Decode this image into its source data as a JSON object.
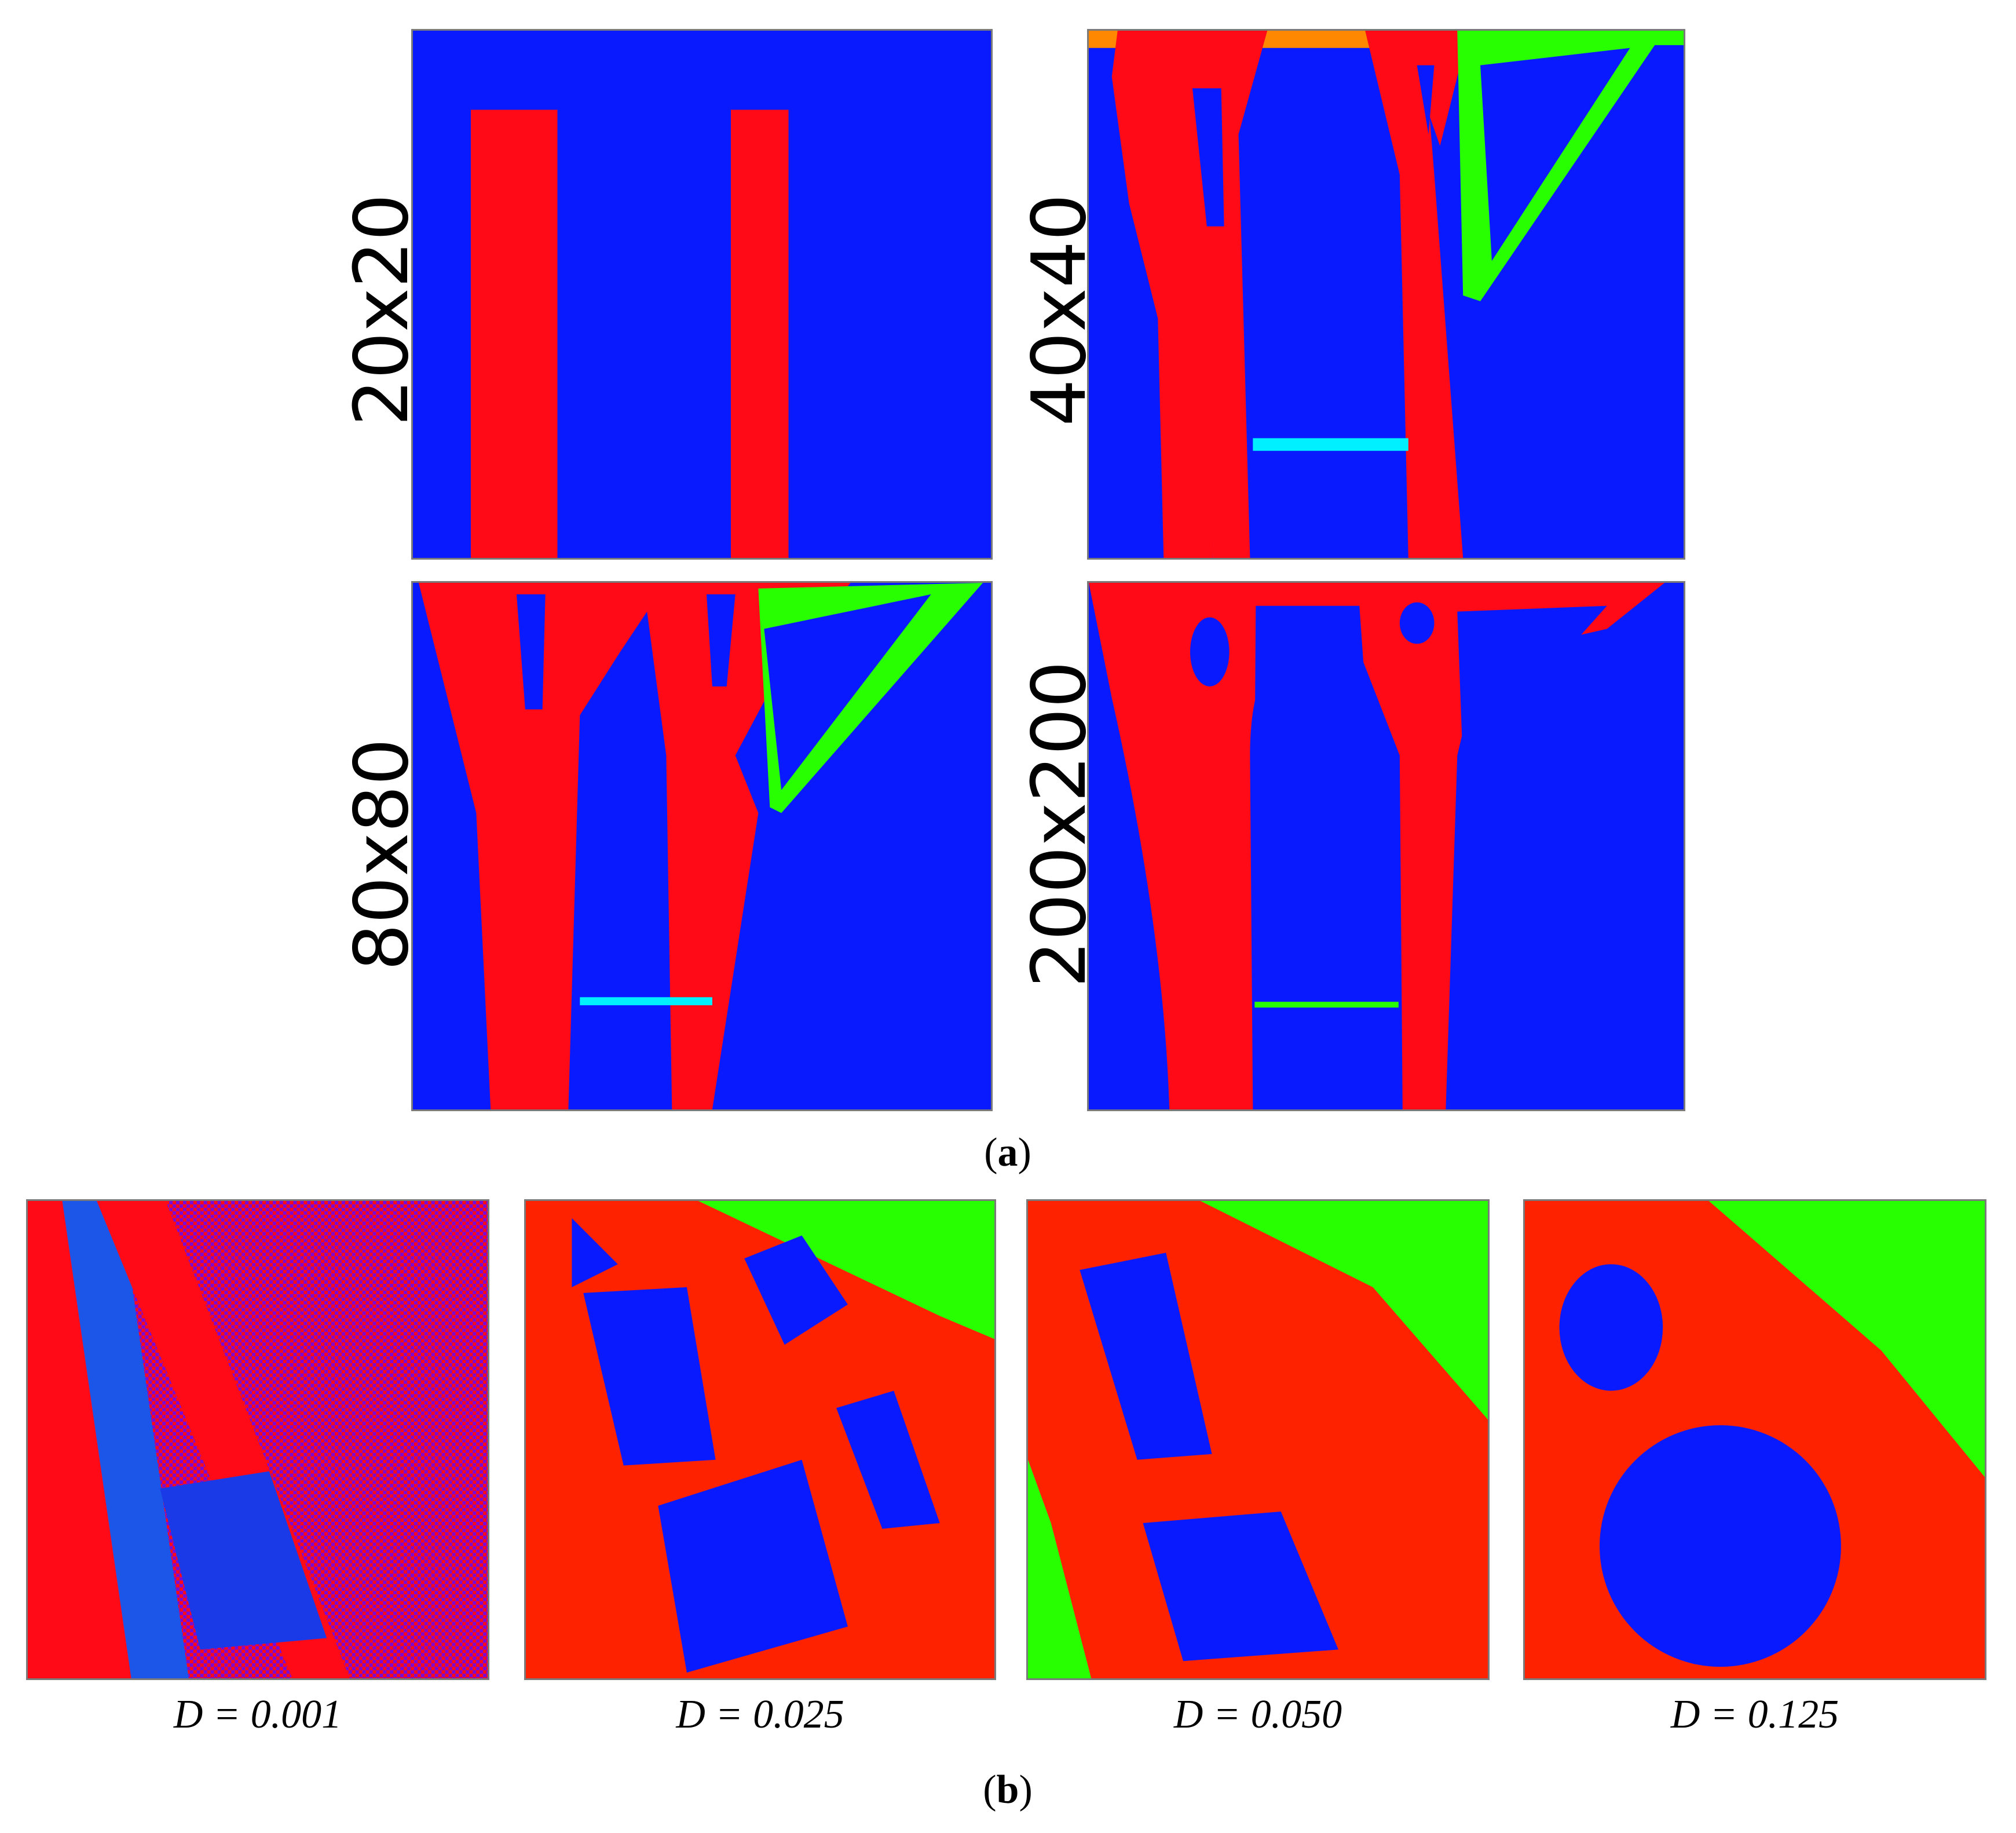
{
  "colors": {
    "blue": "#0a1aff",
    "red": "#ff0a16",
    "red_orange": "#ff2200",
    "orange": "#ff8800",
    "yellow": "#e6ff00",
    "green": "#28ff00",
    "cyan": "#00f0ff",
    "panel_border": "#7a7a7a"
  },
  "part_a": {
    "caption_open": "(",
    "caption_letter": "a",
    "caption_close": ")",
    "panels": [
      {
        "label": "20x20"
      },
      {
        "label": "40x40"
      },
      {
        "label": "80x80"
      },
      {
        "label": "200x200"
      }
    ]
  },
  "part_b": {
    "caption_open": "(",
    "caption_letter": "b",
    "caption_close": ")",
    "panels": [
      {
        "label": "D = 0.001"
      },
      {
        "label": "D = 0.025"
      },
      {
        "label": "D = 0.050"
      },
      {
        "label": "D = 0.125"
      }
    ]
  }
}
